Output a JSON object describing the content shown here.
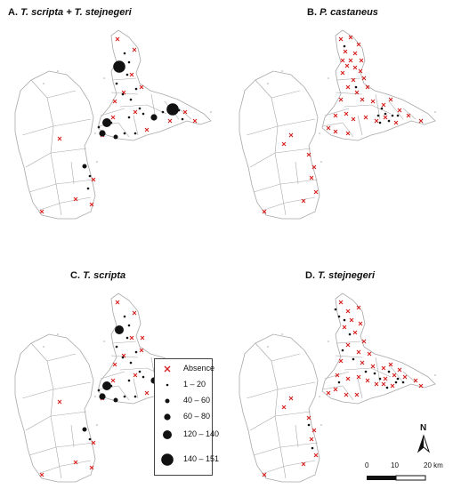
{
  "panels": [
    {
      "letter": "A.",
      "species": "T. scripta + T. stejnegeri"
    },
    {
      "letter": "B.",
      "species": "P. castaneus"
    },
    {
      "letter": "C.",
      "species": "T. scripta"
    },
    {
      "letter": "D.",
      "species": "T. stejnegeri"
    }
  ],
  "legend": {
    "items": [
      {
        "label": "Absence",
        "symbol": "cross"
      },
      {
        "label": "1 – 20",
        "symbol": "dot-1"
      },
      {
        "label": "40 – 60",
        "symbol": "dot-2"
      },
      {
        "label": "60 – 80",
        "symbol": "dot-3"
      },
      {
        "label": "120 – 140",
        "symbol": "dot-4"
      },
      {
        "label": "140 – 151",
        "symbol": "dot-5"
      }
    ]
  },
  "north_arrow": {
    "label": "N"
  },
  "scale_bar": {
    "ticks": [
      "0",
      "10",
      "20 km"
    ]
  },
  "colors": {
    "absence": "#d42020",
    "presence": "#111111",
    "boundary": "#a8a8a8"
  }
}
